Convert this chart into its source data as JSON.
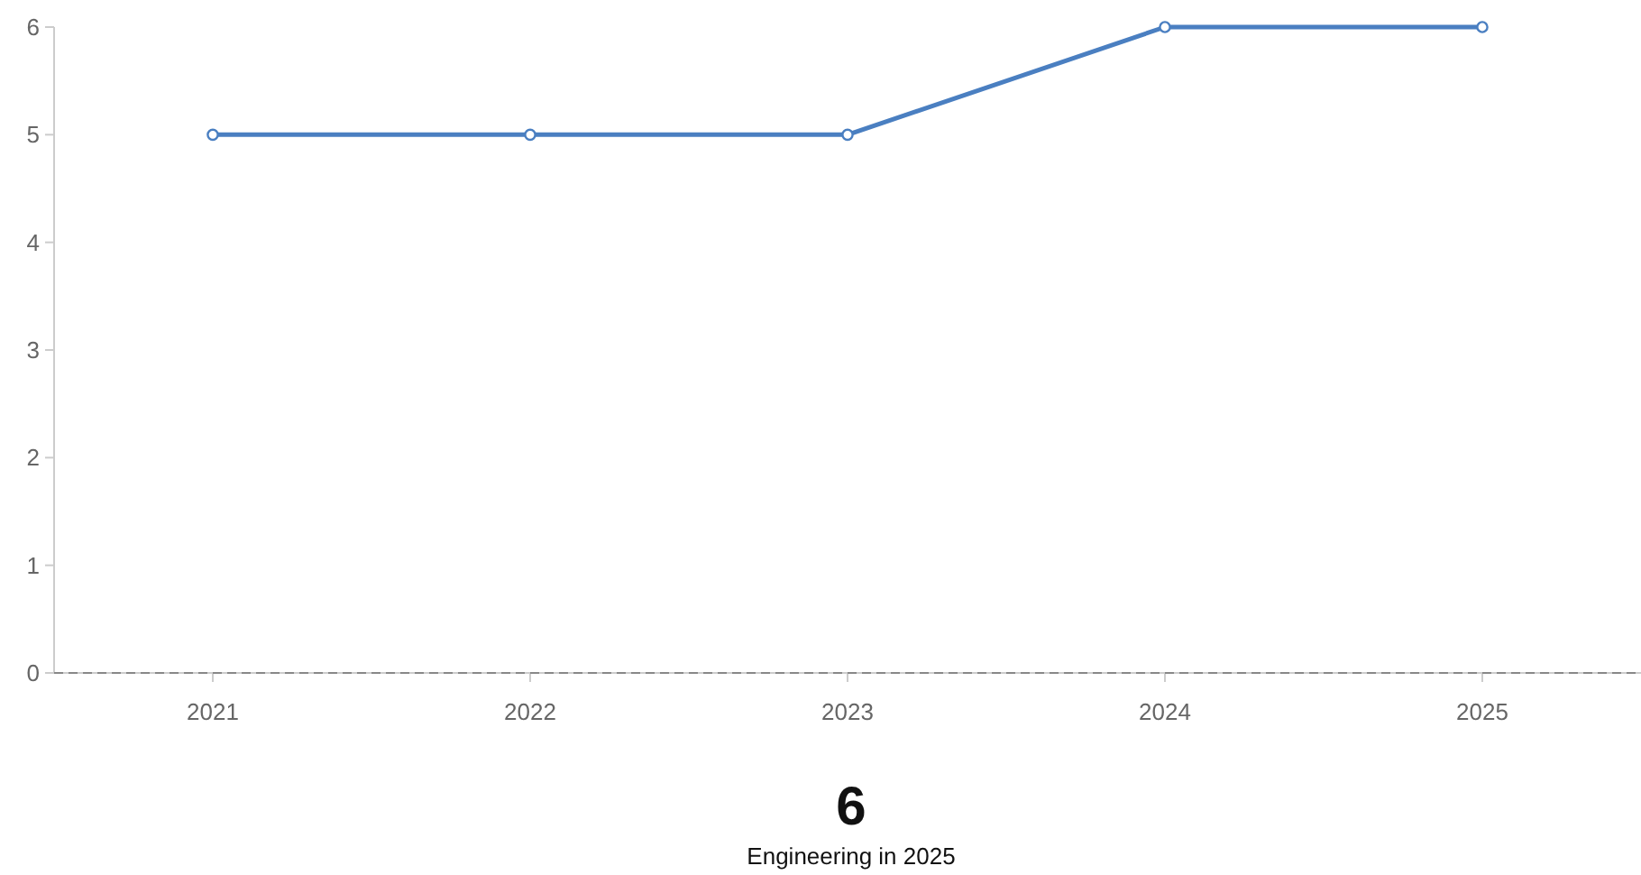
{
  "chart_data": {
    "type": "line",
    "categories": [
      "2021",
      "2022",
      "2023",
      "2024",
      "2025"
    ],
    "series": [
      {
        "color": "#4a7fc1",
        "values": [
          5,
          5,
          5,
          6,
          6
        ]
      }
    ],
    "ylim": [
      0,
      6
    ],
    "yticks": [
      0,
      1,
      2,
      3,
      4,
      5,
      6
    ],
    "marker": "circle",
    "line_style": "solid",
    "grid": false,
    "ref_lines": [
      {
        "axis": "y",
        "value": 0,
        "line_style": "dashed",
        "color": "#888888"
      }
    ],
    "annotations": [
      "6",
      "Engineering in 2025"
    ]
  }
}
